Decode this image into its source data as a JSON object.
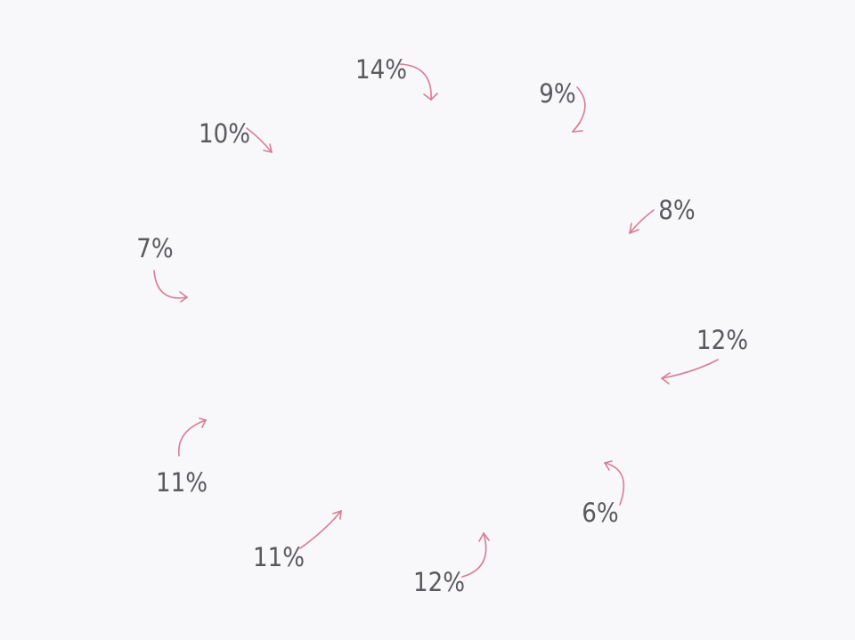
{
  "chart_data": {
    "type": "pie",
    "title": "",
    "series": [
      {
        "values": [
          14,
          9,
          8,
          12,
          6,
          12,
          11,
          11,
          7,
          10
        ],
        "labels": [
          "14%",
          "9%",
          "8%",
          "12%",
          "6%",
          "12%",
          "11%",
          "11%",
          "7%",
          "10%"
        ]
      }
    ],
    "slice_fill": "none",
    "arrow_color": "#d77d94",
    "label_color": "#5a5a5e",
    "background": "#f8f7fa"
  }
}
